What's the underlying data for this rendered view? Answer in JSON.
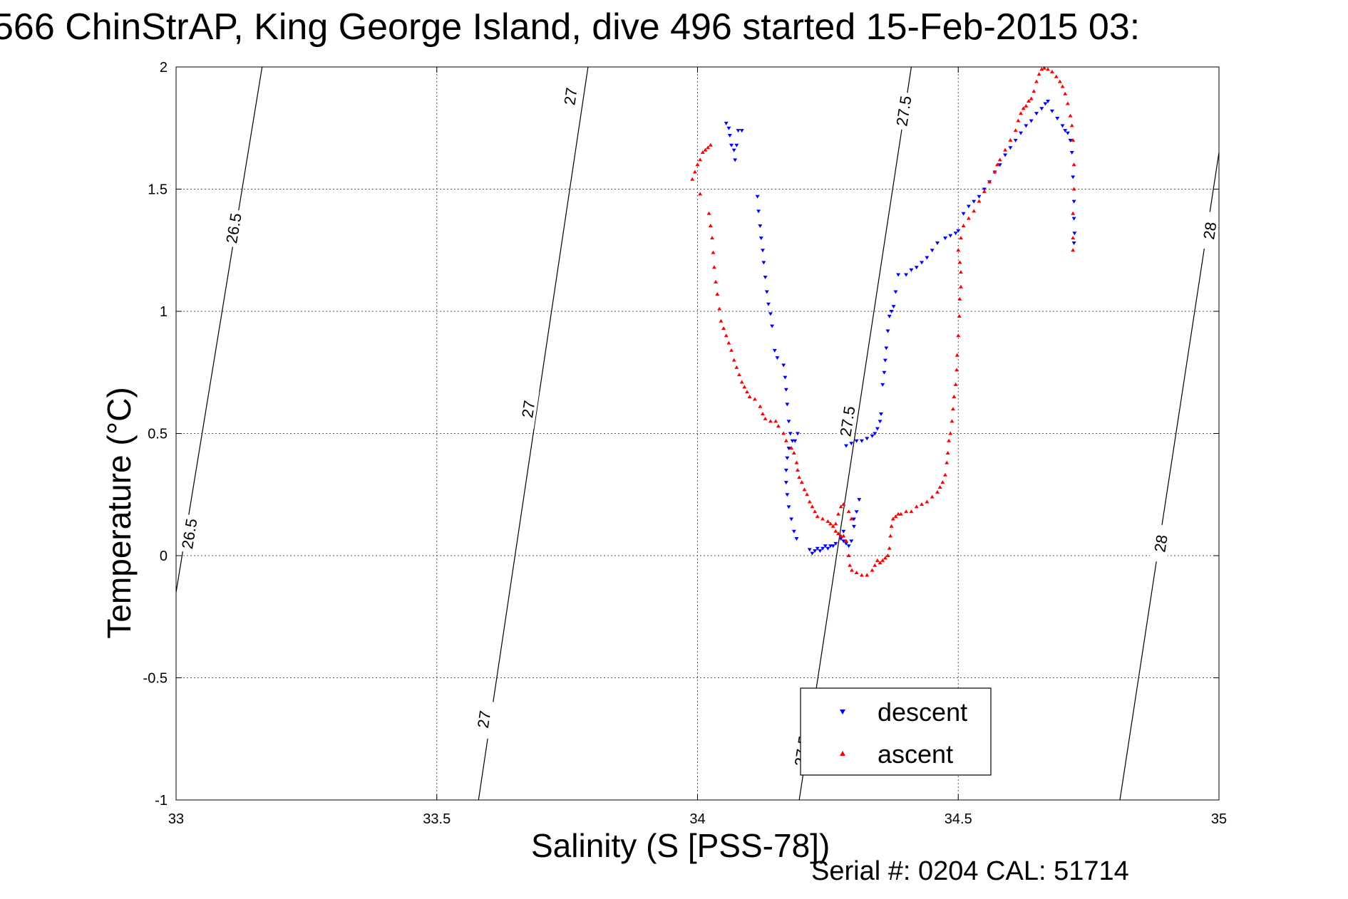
{
  "title": "566 ChinStrAP, King George Island, dive 496 started 15-Feb-2015 03:",
  "serial_note": "Serial #: 0204  CAL: 51714",
  "colors": {
    "descent": "#0000ff",
    "ascent": "#ff0000",
    "grid": "#555555",
    "contour": "#000000"
  },
  "chart_data": {
    "type": "scatter",
    "xlabel": "Salinity (S [PSS-78])",
    "ylabel": "Temperature (°C)",
    "xlim": [
      33,
      35
    ],
    "ylim": [
      -1,
      2
    ],
    "xticks": [
      "33",
      "33.5",
      "34",
      "34.5",
      "35"
    ],
    "yticks": [
      "2",
      "1.5",
      "1",
      "0.5",
      "0",
      "-0.5",
      "-1"
    ],
    "grid": true,
    "legend_position": "lower-right",
    "density_contours": [
      {
        "label": "26.5",
        "line": [
          [
            33.0,
            -0.15
          ],
          [
            33.165,
            2.0
          ]
        ],
        "label_positions": [
          [
            33.11,
            1.34
          ],
          [
            33.025,
            0.09
          ]
        ]
      },
      {
        "label": "27",
        "line": [
          [
            33.58,
            -1.0
          ],
          [
            33.79,
            2.0
          ]
        ],
        "label_positions": [
          [
            33.756,
            1.88
          ],
          [
            33.675,
            0.6
          ],
          [
            33.59,
            -0.67
          ]
        ]
      },
      {
        "label": "27.5",
        "line": [
          [
            34.195,
            -1.0
          ],
          [
            34.41,
            2.0
          ]
        ],
        "label_positions": [
          [
            34.395,
            1.82
          ],
          [
            34.287,
            0.55
          ],
          [
            34.2,
            -0.8
          ]
        ]
      },
      {
        "label": "28",
        "line": [
          [
            34.81,
            -1.0
          ],
          [
            35.0,
            1.65
          ]
        ],
        "label_positions": [
          [
            34.982,
            1.33
          ],
          [
            34.888,
            0.05
          ]
        ]
      }
    ],
    "series": [
      {
        "name": "descent",
        "marker": "triangle-down",
        "points": [
          [
            34.055,
            1.77
          ],
          [
            34.06,
            1.75
          ],
          [
            34.062,
            1.72
          ],
          [
            34.065,
            1.68
          ],
          [
            34.07,
            1.66
          ],
          [
            34.072,
            1.62
          ],
          [
            34.075,
            1.68
          ],
          [
            34.078,
            1.74
          ],
          [
            34.085,
            1.74
          ],
          [
            34.115,
            1.47
          ],
          [
            34.117,
            1.41
          ],
          [
            34.12,
            1.35
          ],
          [
            34.122,
            1.3
          ],
          [
            34.125,
            1.25
          ],
          [
            34.127,
            1.2
          ],
          [
            34.13,
            1.14
          ],
          [
            34.133,
            1.08
          ],
          [
            34.136,
            1.03
          ],
          [
            34.14,
            0.99
          ],
          [
            34.143,
            0.94
          ],
          [
            34.148,
            0.84
          ],
          [
            34.153,
            0.81
          ],
          [
            34.165,
            0.78
          ],
          [
            34.168,
            0.73
          ],
          [
            34.17,
            0.68
          ],
          [
            34.172,
            0.62
          ],
          [
            34.175,
            0.55
          ],
          [
            34.178,
            0.5
          ],
          [
            34.182,
            0.47
          ],
          [
            34.187,
            0.47
          ],
          [
            34.192,
            0.5
          ],
          [
            34.175,
            0.44
          ],
          [
            34.172,
            0.4
          ],
          [
            34.17,
            0.35
          ],
          [
            34.17,
            0.3
          ],
          [
            34.172,
            0.25
          ],
          [
            34.175,
            0.2
          ],
          [
            34.18,
            0.15
          ],
          [
            34.185,
            0.1
          ],
          [
            34.19,
            0.07
          ],
          [
            34.215,
            0.025
          ],
          [
            34.22,
            0.01
          ],
          [
            34.225,
            0.02
          ],
          [
            34.23,
            0.03
          ],
          [
            34.235,
            0.02
          ],
          [
            34.24,
            0.03
          ],
          [
            34.245,
            0.04
          ],
          [
            34.25,
            0.03
          ],
          [
            34.255,
            0.04
          ],
          [
            34.26,
            0.04
          ],
          [
            34.265,
            0.05
          ],
          [
            34.275,
            0.07
          ],
          [
            34.28,
            0.06
          ],
          [
            34.285,
            0.05
          ],
          [
            34.29,
            0.04
          ],
          [
            34.295,
            0.06
          ],
          [
            34.3,
            0.12
          ],
          [
            34.305,
            0.18
          ],
          [
            34.31,
            0.23
          ],
          [
            34.3,
            0.15
          ],
          [
            34.28,
            0.1
          ],
          [
            34.285,
            0.45
          ],
          [
            34.295,
            0.46
          ],
          [
            34.305,
            0.47
          ],
          [
            34.315,
            0.47
          ],
          [
            34.325,
            0.48
          ],
          [
            34.335,
            0.49
          ],
          [
            34.34,
            0.5
          ],
          [
            34.345,
            0.52
          ],
          [
            34.35,
            0.55
          ],
          [
            34.352,
            0.58
          ],
          [
            34.355,
            0.7
          ],
          [
            34.358,
            0.75
          ],
          [
            34.36,
            0.8
          ],
          [
            34.362,
            0.85
          ],
          [
            34.365,
            0.92
          ],
          [
            34.368,
            0.98
          ],
          [
            34.372,
            1.0
          ],
          [
            34.376,
            1.02
          ],
          [
            34.38,
            1.08
          ],
          [
            34.385,
            1.15
          ],
          [
            34.4,
            1.15
          ],
          [
            34.41,
            1.17
          ],
          [
            34.42,
            1.18
          ],
          [
            34.43,
            1.2
          ],
          [
            34.44,
            1.22
          ],
          [
            34.45,
            1.25
          ],
          [
            34.46,
            1.28
          ],
          [
            34.475,
            1.3
          ],
          [
            34.485,
            1.31
          ],
          [
            34.495,
            1.32
          ],
          [
            34.5,
            1.33
          ],
          [
            34.51,
            1.4
          ],
          [
            34.52,
            1.43
          ],
          [
            34.53,
            1.45
          ],
          [
            34.54,
            1.47
          ],
          [
            34.55,
            1.5
          ],
          [
            34.56,
            1.53
          ],
          [
            34.57,
            1.57
          ],
          [
            34.58,
            1.6
          ],
          [
            34.59,
            1.64
          ],
          [
            34.6,
            1.67
          ],
          [
            34.61,
            1.7
          ],
          [
            34.62,
            1.73
          ],
          [
            34.63,
            1.76
          ],
          [
            34.64,
            1.78
          ],
          [
            34.65,
            1.81
          ],
          [
            34.66,
            1.83
          ],
          [
            34.667,
            1.85
          ],
          [
            34.672,
            1.86
          ],
          [
            34.68,
            1.82
          ],
          [
            34.69,
            1.79
          ],
          [
            34.7,
            1.76
          ],
          [
            34.705,
            1.74
          ],
          [
            34.71,
            1.73
          ],
          [
            34.715,
            1.7
          ],
          [
            34.718,
            1.65
          ],
          [
            34.72,
            1.55
          ],
          [
            34.722,
            1.45
          ],
          [
            34.722,
            1.38
          ],
          [
            34.723,
            1.32
          ],
          [
            34.722,
            1.28
          ]
        ]
      },
      {
        "name": "ascent",
        "marker": "triangle-up",
        "points": [
          [
            34.025,
            1.68
          ],
          [
            34.02,
            1.67
          ],
          [
            34.015,
            1.66
          ],
          [
            34.01,
            1.65
          ],
          [
            34.005,
            1.62
          ],
          [
            34.0,
            1.6
          ],
          [
            33.995,
            1.57
          ],
          [
            33.99,
            1.54
          ],
          [
            34.005,
            1.48
          ],
          [
            34.022,
            1.4
          ],
          [
            34.025,
            1.35
          ],
          [
            34.028,
            1.3
          ],
          [
            34.03,
            1.24
          ],
          [
            34.032,
            1.18
          ],
          [
            34.035,
            1.12
          ],
          [
            34.038,
            1.07
          ],
          [
            34.042,
            1.01
          ],
          [
            34.045,
            0.96
          ],
          [
            34.05,
            0.93
          ],
          [
            34.055,
            0.9
          ],
          [
            34.06,
            0.87
          ],
          [
            34.065,
            0.84
          ],
          [
            34.07,
            0.8
          ],
          [
            34.075,
            0.77
          ],
          [
            34.08,
            0.74
          ],
          [
            34.085,
            0.71
          ],
          [
            34.09,
            0.69
          ],
          [
            34.095,
            0.67
          ],
          [
            34.1,
            0.65
          ],
          [
            34.11,
            0.64
          ],
          [
            34.12,
            0.61
          ],
          [
            34.125,
            0.58
          ],
          [
            34.13,
            0.56
          ],
          [
            34.14,
            0.55
          ],
          [
            34.15,
            0.55
          ],
          [
            34.155,
            0.53
          ],
          [
            34.165,
            0.5
          ],
          [
            34.17,
            0.47
          ],
          [
            34.18,
            0.44
          ],
          [
            34.185,
            0.42
          ],
          [
            34.19,
            0.38
          ],
          [
            34.192,
            0.35
          ],
          [
            34.195,
            0.32
          ],
          [
            34.2,
            0.3
          ],
          [
            34.205,
            0.27
          ],
          [
            34.21,
            0.25
          ],
          [
            34.215,
            0.22
          ],
          [
            34.22,
            0.2
          ],
          [
            34.225,
            0.18
          ],
          [
            34.23,
            0.16
          ],
          [
            34.24,
            0.15
          ],
          [
            34.25,
            0.14
          ],
          [
            34.255,
            0.13
          ],
          [
            34.26,
            0.12
          ],
          [
            34.265,
            0.1
          ],
          [
            34.27,
            0.09
          ],
          [
            34.275,
            0.08
          ],
          [
            34.28,
            0.08
          ],
          [
            34.285,
            0.06
          ],
          [
            34.265,
            0.13
          ],
          [
            34.27,
            0.17
          ],
          [
            34.275,
            0.2
          ],
          [
            34.28,
            0.21
          ],
          [
            34.29,
            0.18
          ],
          [
            34.295,
            0.15
          ],
          [
            34.29,
            0.0
          ],
          [
            34.292,
            -0.04
          ],
          [
            34.296,
            -0.06
          ],
          [
            34.305,
            -0.07
          ],
          [
            34.315,
            -0.08
          ],
          [
            34.325,
            -0.08
          ],
          [
            34.335,
            -0.06
          ],
          [
            34.34,
            -0.04
          ],
          [
            34.345,
            -0.02
          ],
          [
            34.35,
            -0.03
          ],
          [
            34.355,
            -0.02
          ],
          [
            34.36,
            -0.01
          ],
          [
            34.365,
            0.0
          ],
          [
            34.368,
            0.03
          ],
          [
            34.37,
            0.08
          ],
          [
            34.372,
            0.12
          ],
          [
            34.375,
            0.15
          ],
          [
            34.38,
            0.16
          ],
          [
            34.385,
            0.17
          ],
          [
            34.39,
            0.17
          ],
          [
            34.4,
            0.18
          ],
          [
            34.41,
            0.18
          ],
          [
            34.42,
            0.2
          ],
          [
            34.43,
            0.21
          ],
          [
            34.44,
            0.22
          ],
          [
            34.45,
            0.24
          ],
          [
            34.46,
            0.26
          ],
          [
            34.465,
            0.28
          ],
          [
            34.47,
            0.3
          ],
          [
            34.475,
            0.33
          ],
          [
            34.478,
            0.38
          ],
          [
            34.48,
            0.42
          ],
          [
            34.482,
            0.47
          ],
          [
            34.485,
            0.5
          ],
          [
            34.488,
            0.55
          ],
          [
            34.49,
            0.6
          ],
          [
            34.492,
            0.65
          ],
          [
            34.495,
            0.7
          ],
          [
            34.497,
            0.76
          ],
          [
            34.498,
            0.82
          ],
          [
            34.5,
            0.9
          ],
          [
            34.502,
            0.98
          ],
          [
            34.503,
            1.05
          ],
          [
            34.505,
            1.1
          ],
          [
            34.505,
            1.16
          ],
          [
            34.503,
            1.2
          ],
          [
            34.5,
            1.25
          ],
          [
            34.505,
            1.3
          ],
          [
            34.51,
            1.35
          ],
          [
            34.52,
            1.38
          ],
          [
            34.53,
            1.41
          ],
          [
            34.54,
            1.45
          ],
          [
            34.55,
            1.49
          ],
          [
            34.56,
            1.53
          ],
          [
            34.57,
            1.57
          ],
          [
            34.575,
            1.6
          ],
          [
            34.58,
            1.62
          ],
          [
            34.59,
            1.66
          ],
          [
            34.6,
            1.7
          ],
          [
            34.61,
            1.74
          ],
          [
            34.615,
            1.78
          ],
          [
            34.62,
            1.81
          ],
          [
            34.625,
            1.83
          ],
          [
            34.63,
            1.84
          ],
          [
            34.635,
            1.86
          ],
          [
            34.64,
            1.87
          ],
          [
            34.645,
            1.9
          ],
          [
            34.65,
            1.94
          ],
          [
            34.655,
            1.97
          ],
          [
            34.66,
            1.99
          ],
          [
            34.665,
            1.995
          ],
          [
            34.672,
            1.99
          ],
          [
            34.68,
            1.98
          ],
          [
            34.688,
            1.96
          ],
          [
            34.695,
            1.94
          ],
          [
            34.7,
            1.92
          ],
          [
            34.705,
            1.89
          ],
          [
            34.71,
            1.85
          ],
          [
            34.715,
            1.8
          ],
          [
            34.718,
            1.76
          ],
          [
            34.72,
            1.7
          ],
          [
            34.722,
            1.6
          ],
          [
            34.722,
            1.5
          ],
          [
            34.72,
            1.4
          ],
          [
            34.72,
            1.3
          ],
          [
            34.72,
            1.25
          ]
        ]
      }
    ]
  }
}
